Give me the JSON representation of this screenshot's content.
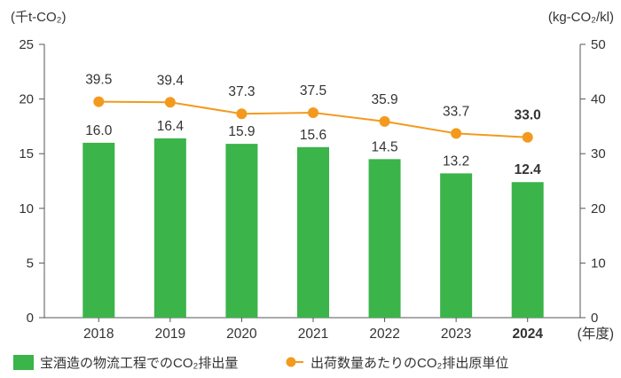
{
  "chart_data": {
    "type": "bar+line",
    "categories": [
      "2018",
      "2019",
      "2020",
      "2021",
      "2022",
      "2023",
      "2024"
    ],
    "highlight_category": "2024",
    "x_unit": "(年度)",
    "left_axis": {
      "unit": "(千t-CO₂)",
      "ylim": [
        0,
        25
      ],
      "ticks": [
        0,
        5,
        10,
        15,
        20,
        25
      ]
    },
    "right_axis": {
      "unit": "(kg-CO₂/kl)",
      "ylim": [
        0,
        50
      ],
      "ticks": [
        0,
        10,
        20,
        30,
        40,
        50
      ]
    },
    "grid": false,
    "legend_position": "bottom",
    "series": [
      {
        "name": "宝酒造の物流工程でのCO₂排出量",
        "type": "bar",
        "axis": "left",
        "color": "#3bb44a",
        "values": [
          16.0,
          16.4,
          15.9,
          15.6,
          14.5,
          13.2,
          12.4
        ],
        "labels": [
          "16.0",
          "16.4",
          "15.9",
          "15.6",
          "14.5",
          "13.2",
          "12.4"
        ]
      },
      {
        "name": "出荷数量あたりのCO₂排出原単位",
        "type": "line",
        "axis": "right",
        "color": "#f39a1e",
        "values": [
          39.5,
          39.4,
          37.3,
          37.5,
          35.9,
          33.7,
          33.0
        ],
        "labels": [
          "39.5",
          "39.4",
          "37.3",
          "37.5",
          "35.9",
          "33.7",
          "33.0"
        ]
      }
    ]
  }
}
